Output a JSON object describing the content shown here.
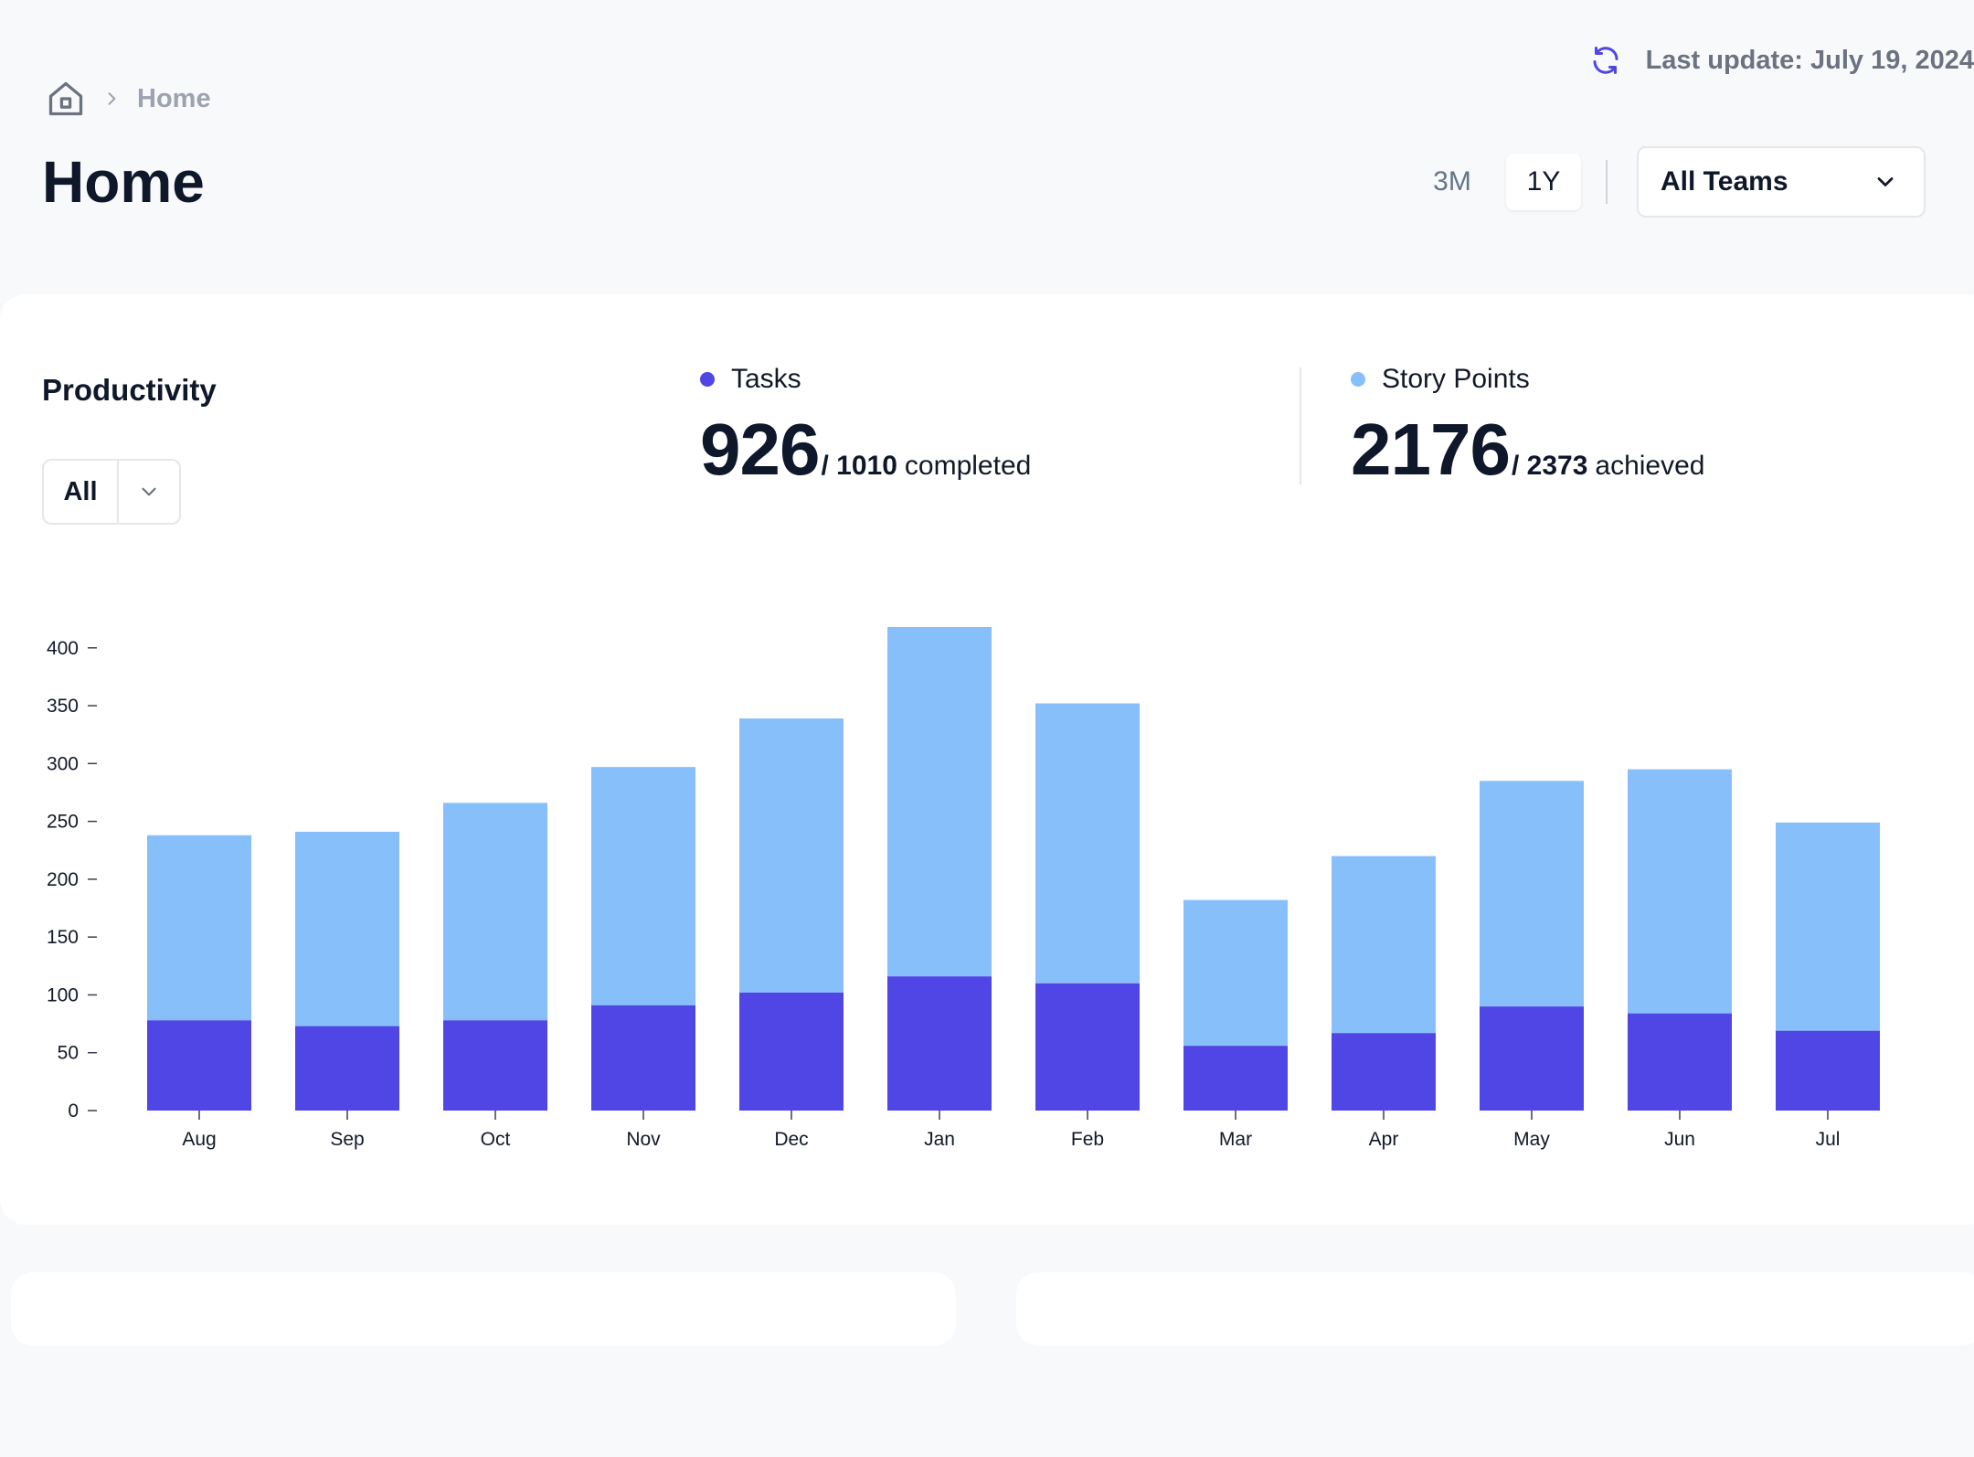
{
  "header": {
    "last_update": "Last update: July 19, 2024",
    "breadcrumb": "Home",
    "title": "Home",
    "ranges": [
      "3M",
      "1Y"
    ],
    "active_range": "1Y",
    "team_select": "All Teams"
  },
  "card": {
    "title": "Productivity",
    "filter_value": "All",
    "tasks": {
      "label": "Tasks",
      "value": "926",
      "total": "/ 1010",
      "suffix": "completed"
    },
    "story_points": {
      "label": "Story Points",
      "value": "2176",
      "total": "/ 2373",
      "suffix": "achieved"
    }
  },
  "colors": {
    "tasks": "#4f46e5",
    "story_points": "#87bffb",
    "accent": "#4f46e5"
  },
  "chart_data": {
    "type": "bar",
    "stacked": true,
    "categories": [
      "Aug",
      "Sep",
      "Oct",
      "Nov",
      "Dec",
      "Jan",
      "Feb",
      "Mar",
      "Apr",
      "May",
      "Jun",
      "Jul"
    ],
    "series": [
      {
        "name": "Tasks",
        "values": [
          78,
          73,
          78,
          91,
          102,
          116,
          110,
          56,
          67,
          90,
          84,
          69
        ]
      },
      {
        "name": "Story Points",
        "values": [
          160,
          168,
          188,
          206,
          237,
          302,
          242,
          126,
          153,
          195,
          211,
          180
        ]
      }
    ],
    "totals": [
      238,
      241,
      266,
      297,
      339,
      418,
      352,
      182,
      220,
      285,
      295,
      249
    ],
    "yticks": [
      0,
      50,
      100,
      150,
      200,
      250,
      300,
      350,
      400
    ],
    "ylim": [
      0,
      418
    ],
    "grid": false,
    "legend": "top"
  }
}
